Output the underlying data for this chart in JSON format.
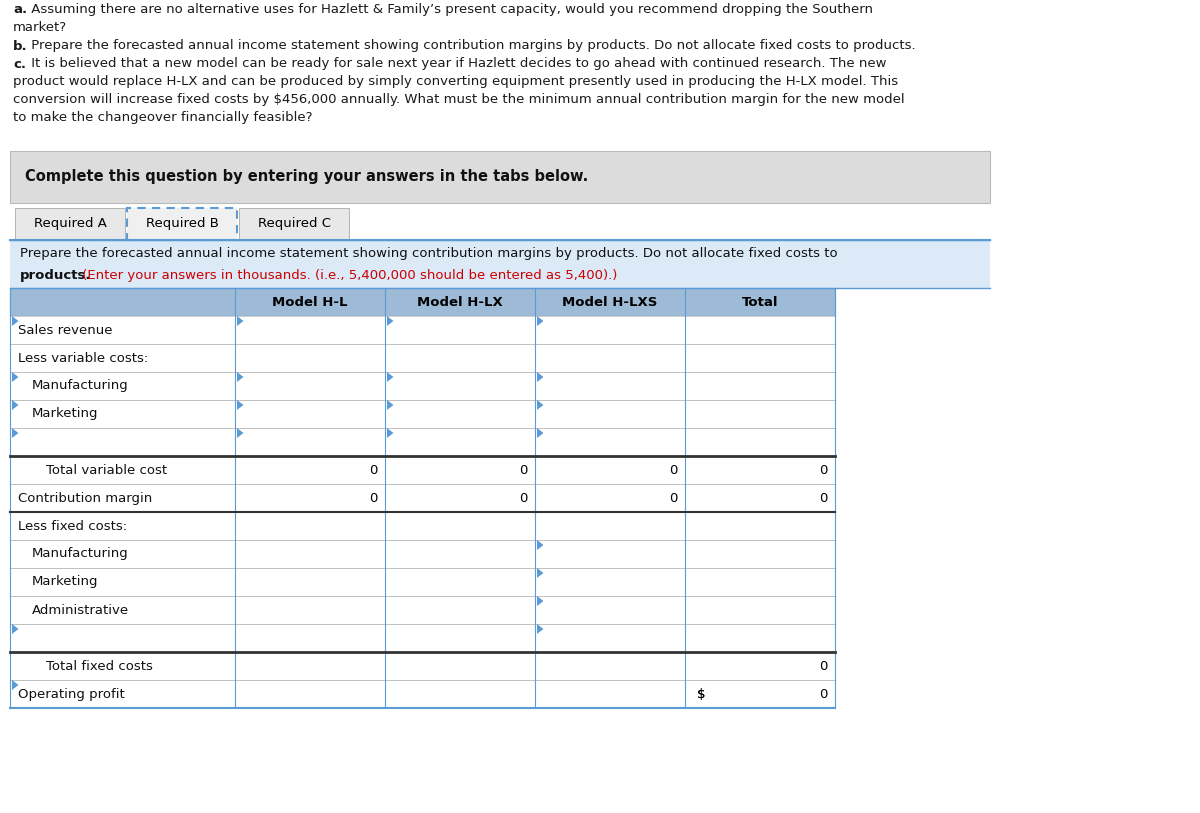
{
  "intro_lines": [
    [
      [
        "a.",
        true
      ],
      [
        " Assuming there are no alternative uses for Hazlett & Family’s present capacity, would you recommend dropping the Southern",
        false
      ]
    ],
    [
      [
        "market?",
        false
      ]
    ],
    [
      [
        "b.",
        true
      ],
      [
        " Prepare the forecasted annual income statement showing contribution margins by products. Do not allocate fixed costs to products.",
        false
      ]
    ],
    [
      [
        "c.",
        true
      ],
      [
        " It is believed that a new model can be ready for sale next year if Hazlett decides to go ahead with continued research. The new",
        false
      ]
    ],
    [
      [
        "product would replace H-LX and can be produced by simply converting equipment presently used in producing the H-LX model. This",
        false
      ]
    ],
    [
      [
        "conversion will increase fixed costs by $456,000 annually. What must be the minimum annual contribution margin for the new model",
        false
      ]
    ],
    [
      [
        "to make the changeover financially feasible?",
        false
      ]
    ]
  ],
  "complete_text": "Complete this question by entering your answers in the tabs below.",
  "tabs": [
    "Required A",
    "Required B",
    "Required C"
  ],
  "active_tab": 1,
  "instr_line1": "Prepare the forecasted annual income statement showing contribution margins by products. Do not allocate fixed costs to",
  "instr_line2_normal": "products.",
  "instr_line2_red": " (Enter your answers in thousands. (i.e., 5,400,000 should be entered as 5,400).)",
  "col_headers": [
    "Model H-L",
    "Model H-LX",
    "Model H-LXS",
    "Total"
  ],
  "rows": [
    {
      "label": "Sales revenue",
      "indent": 0,
      "values": [
        "",
        "",
        "",
        ""
      ],
      "tri": [
        true,
        true,
        true,
        true
      ],
      "sum_row": false,
      "dollar": false
    },
    {
      "label": "Less variable costs:",
      "indent": 0,
      "values": [
        "",
        "",
        "",
        ""
      ],
      "tri": [
        false,
        false,
        false,
        false
      ],
      "sum_row": false,
      "dollar": false
    },
    {
      "label": "Manufacturing",
      "indent": 1,
      "values": [
        "",
        "",
        "",
        ""
      ],
      "tri": [
        true,
        true,
        true,
        true
      ],
      "sum_row": false,
      "dollar": false
    },
    {
      "label": "Marketing",
      "indent": 1,
      "values": [
        "",
        "",
        "",
        ""
      ],
      "tri": [
        true,
        true,
        true,
        true
      ],
      "sum_row": false,
      "dollar": false
    },
    {
      "label": "",
      "indent": 1,
      "values": [
        "",
        "",
        "",
        ""
      ],
      "tri": [
        true,
        true,
        true,
        true
      ],
      "sum_row": false,
      "dollar": false
    },
    {
      "label": "Total variable cost",
      "indent": 2,
      "values": [
        "0",
        "0",
        "0",
        "0"
      ],
      "tri": [
        false,
        false,
        false,
        false
      ],
      "sum_row": true,
      "dollar": false,
      "thick_top": true
    },
    {
      "label": "Contribution margin",
      "indent": 0,
      "values": [
        "0",
        "0",
        "0",
        "0"
      ],
      "tri": [
        false,
        false,
        false,
        false
      ],
      "sum_row": true,
      "dollar": false,
      "thick_bottom": true
    },
    {
      "label": "Less fixed costs:",
      "indent": 0,
      "values": [
        "",
        "",
        "",
        ""
      ],
      "tri": [
        false,
        false,
        false,
        false
      ],
      "sum_row": false,
      "dollar": false
    },
    {
      "label": "Manufacturing",
      "indent": 1,
      "values": [
        "",
        "",
        "",
        ""
      ],
      "tri": [
        false,
        false,
        false,
        true
      ],
      "sum_row": false,
      "dollar": false
    },
    {
      "label": "Marketing",
      "indent": 1,
      "values": [
        "",
        "",
        "",
        ""
      ],
      "tri": [
        false,
        false,
        false,
        true
      ],
      "sum_row": false,
      "dollar": false
    },
    {
      "label": "Administrative",
      "indent": 1,
      "values": [
        "",
        "",
        "",
        ""
      ],
      "tri": [
        false,
        false,
        false,
        true
      ],
      "sum_row": false,
      "dollar": false
    },
    {
      "label": "",
      "indent": 1,
      "values": [
        "",
        "",
        "",
        ""
      ],
      "tri": [
        true,
        false,
        false,
        true
      ],
      "sum_row": false,
      "dollar": false
    },
    {
      "label": "Total fixed costs",
      "indent": 2,
      "values": [
        "",
        "",
        "",
        "0"
      ],
      "tri": [
        false,
        false,
        false,
        false
      ],
      "sum_row": true,
      "dollar": false,
      "thick_top": true
    },
    {
      "label": "Operating profit",
      "indent": 0,
      "values": [
        "",
        "",
        "",
        "0"
      ],
      "tri": [
        true,
        false,
        false,
        false
      ],
      "sum_row": false,
      "dollar": true
    }
  ],
  "bg_white": "#ffffff",
  "bg_gray": "#dcdcdc",
  "bg_blue_light": "#dce9f7",
  "bg_blue_header": "#9dbad7",
  "border_blue": "#5b9bd5",
  "border_gray": "#aaaaaa",
  "text_black": "#000000",
  "text_red": "#cc0000",
  "tri_color": "#5b9bd5",
  "tab_active_bg": "#f0f0f0",
  "tab_inactive_bg": "#e8e8e8"
}
